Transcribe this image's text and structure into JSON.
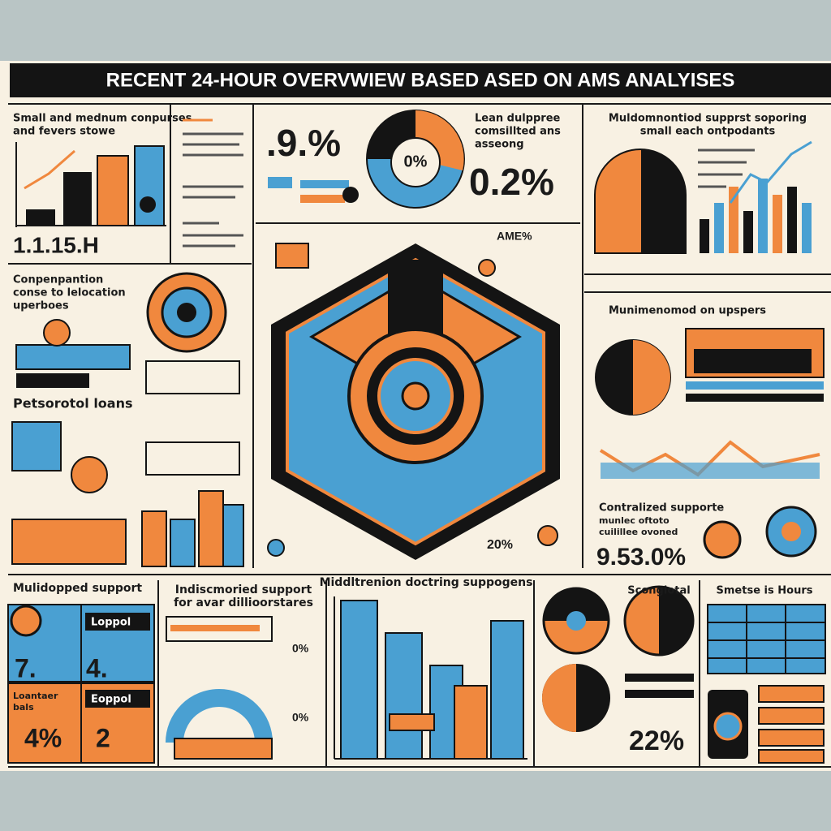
{
  "header": {
    "title": "RECENT 24-HOUR  OVERVWIEW   BASED ASED ON  AMS  ANALYISES"
  },
  "panels": [
    {
      "title": [
        "Small and mednum conpurses",
        "and fevers stowe"
      ],
      "stat": "1.1.15.H"
    },
    {
      "title": [
        "Lean dulppree",
        "comsillted ans",
        "asseong"
      ],
      "stats": [
        ".9.%",
        "0%",
        "0.2%"
      ]
    },
    {
      "title": [
        "Muldomnontiod supprst soporing",
        "small each ontpodants"
      ]
    },
    {
      "title": [
        "Conpenpantion",
        "conse to lelocation",
        "uperboes"
      ]
    },
    {
      "title": [
        "Petsorotol loans"
      ]
    },
    {
      "stats": [
        "AME%",
        "20%"
      ]
    },
    {
      "title": [
        "Munimenomod on upspers"
      ]
    },
    {
      "title": [
        "Contralized supporte",
        "munlec oftoto",
        "cuilillee ovoned"
      ],
      "stat": "9.53.0%"
    },
    {
      "title": [
        "Mulidopped support"
      ],
      "labels": [
        "Loppol",
        "Eoppol",
        "Loantaer",
        "bals"
      ],
      "stats": [
        "7.",
        "4.",
        "4%",
        "2"
      ]
    },
    {
      "title": [
        "Indiscmoried support",
        "for avar dillioorstares"
      ],
      "stats": [
        "0%",
        "0%"
      ]
    },
    {
      "title": [
        "Middltrenion doctring suppogens"
      ]
    },
    {
      "title": [
        "Scongiotal"
      ],
      "stat": "22%"
    },
    {
      "title": [
        "Smetse is Hours"
      ]
    }
  ]
}
